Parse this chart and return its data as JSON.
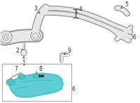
{
  "bg_color": "#ffffff",
  "part_color": "#4ec8d0",
  "line_color": "#888888",
  "dark_line": "#555555",
  "label_color": "#333333",
  "label_fontsize": 5.5,
  "arrow_color": "#555555",
  "hose_fill": "#e8e8e8",
  "hose_edge": "#999999"
}
